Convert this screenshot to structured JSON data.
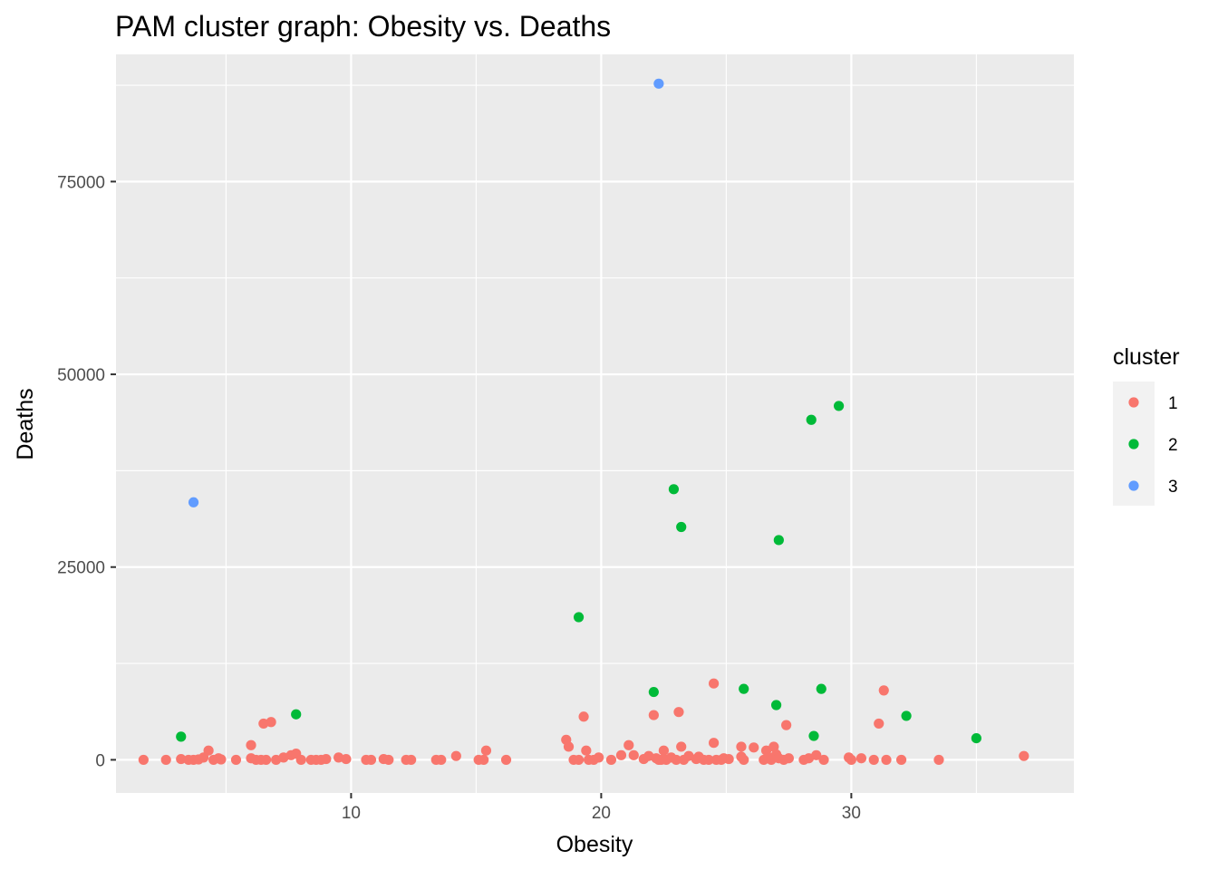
{
  "chart_data": {
    "type": "scatter",
    "title": "PAM cluster graph: Obesity vs. Deaths",
    "xlabel": "Obesity",
    "ylabel": "Deaths",
    "xlim": [
      0.6,
      38.9
    ],
    "ylim": [
      -4300,
      91500
    ],
    "x_ticks": [
      10,
      20,
      30
    ],
    "x_tick_labels": [
      "10",
      "20",
      "30"
    ],
    "y_ticks": [
      0,
      25000,
      50000,
      75000
    ],
    "y_tick_labels": [
      "0",
      "25000",
      "50000",
      "75000"
    ],
    "x_minor_breaks": [
      5,
      15,
      25,
      35
    ],
    "y_minor_breaks": [
      12500,
      37500,
      62500,
      87500
    ],
    "grid": true,
    "panel_background": "#EBEBEB",
    "legend": {
      "title": "cluster",
      "position": "right",
      "entries": [
        {
          "label": "1",
          "color": "#F8766D"
        },
        {
          "label": "2",
          "color": "#00BA38"
        },
        {
          "label": "3",
          "color": "#619CFF"
        }
      ]
    },
    "series": [
      {
        "name": "1",
        "color": "#F8766D",
        "points": [
          [
            1.7,
            0
          ],
          [
            2.6,
            0
          ],
          [
            3.2,
            100
          ],
          [
            3.5,
            0
          ],
          [
            3.7,
            0
          ],
          [
            3.9,
            50
          ],
          [
            4.1,
            300
          ],
          [
            4.3,
            1200
          ],
          [
            4.5,
            0
          ],
          [
            4.7,
            200
          ],
          [
            4.8,
            50
          ],
          [
            5.4,
            0
          ],
          [
            6.0,
            1900
          ],
          [
            6.0,
            200
          ],
          [
            6.2,
            0
          ],
          [
            6.4,
            0
          ],
          [
            6.5,
            4700
          ],
          [
            6.6,
            0
          ],
          [
            6.8,
            4900
          ],
          [
            7.0,
            0
          ],
          [
            7.3,
            300
          ],
          [
            7.6,
            600
          ],
          [
            7.8,
            800
          ],
          [
            8.0,
            0
          ],
          [
            8.4,
            0
          ],
          [
            8.6,
            0
          ],
          [
            8.8,
            0
          ],
          [
            9.0,
            100
          ],
          [
            9.5,
            300
          ],
          [
            9.8,
            100
          ],
          [
            10.6,
            0
          ],
          [
            10.8,
            0
          ],
          [
            11.3,
            100
          ],
          [
            11.5,
            0
          ],
          [
            12.2,
            0
          ],
          [
            12.4,
            0
          ],
          [
            13.4,
            0
          ],
          [
            13.6,
            0
          ],
          [
            14.2,
            500
          ],
          [
            15.1,
            0
          ],
          [
            15.3,
            0
          ],
          [
            15.4,
            1200
          ],
          [
            16.2,
            0
          ],
          [
            18.6,
            2600
          ],
          [
            18.7,
            1700
          ],
          [
            18.9,
            0
          ],
          [
            19.1,
            0
          ],
          [
            19.3,
            5600
          ],
          [
            19.4,
            1200
          ],
          [
            19.5,
            0
          ],
          [
            19.7,
            0
          ],
          [
            19.9,
            300
          ],
          [
            20.4,
            0
          ],
          [
            20.8,
            600
          ],
          [
            21.1,
            1900
          ],
          [
            21.3,
            600
          ],
          [
            21.7,
            100
          ],
          [
            21.9,
            500
          ],
          [
            22.1,
            5800
          ],
          [
            22.2,
            200
          ],
          [
            22.3,
            0
          ],
          [
            22.4,
            0
          ],
          [
            22.5,
            1200
          ],
          [
            22.6,
            0
          ],
          [
            22.8,
            300
          ],
          [
            23.0,
            0
          ],
          [
            23.1,
            6200
          ],
          [
            23.2,
            1700
          ],
          [
            23.3,
            0
          ],
          [
            23.5,
            500
          ],
          [
            23.8,
            100
          ],
          [
            23.9,
            400
          ],
          [
            24.1,
            0
          ],
          [
            24.3,
            0
          ],
          [
            24.5,
            9900
          ],
          [
            24.5,
            2200
          ],
          [
            24.6,
            0
          ],
          [
            24.8,
            0
          ],
          [
            24.9,
            200
          ],
          [
            25.1,
            100
          ],
          [
            25.6,
            1700
          ],
          [
            25.6,
            400
          ],
          [
            25.7,
            0
          ],
          [
            26.1,
            1600
          ],
          [
            26.5,
            0
          ],
          [
            26.6,
            1200
          ],
          [
            26.7,
            300
          ],
          [
            26.8,
            0
          ],
          [
            26.9,
            1700
          ],
          [
            27.0,
            700
          ],
          [
            27.1,
            200
          ],
          [
            27.3,
            0
          ],
          [
            27.4,
            4500
          ],
          [
            27.5,
            200
          ],
          [
            28.1,
            0
          ],
          [
            28.3,
            200
          ],
          [
            28.6,
            600
          ],
          [
            28.9,
            0
          ],
          [
            29.9,
            300
          ],
          [
            30.0,
            0
          ],
          [
            30.4,
            200
          ],
          [
            30.9,
            0
          ],
          [
            31.1,
            4700
          ],
          [
            31.3,
            9000
          ],
          [
            31.4,
            0
          ],
          [
            32.0,
            0
          ],
          [
            33.5,
            0
          ],
          [
            36.9,
            500
          ]
        ]
      },
      {
        "name": "2",
        "color": "#00BA38",
        "points": [
          [
            3.2,
            3000
          ],
          [
            7.8,
            5900
          ],
          [
            19.1,
            18500
          ],
          [
            22.1,
            8800
          ],
          [
            22.9,
            35100
          ],
          [
            23.2,
            30200
          ],
          [
            25.7,
            9200
          ],
          [
            27.0,
            7100
          ],
          [
            27.1,
            28500
          ],
          [
            28.4,
            44100
          ],
          [
            28.5,
            3100
          ],
          [
            28.8,
            9200
          ],
          [
            29.5,
            45900
          ],
          [
            32.2,
            5700
          ],
          [
            35.0,
            2800
          ]
        ]
      },
      {
        "name": "3",
        "color": "#619CFF",
        "points": [
          [
            3.7,
            33400
          ],
          [
            22.3,
            87700
          ]
        ]
      }
    ]
  }
}
